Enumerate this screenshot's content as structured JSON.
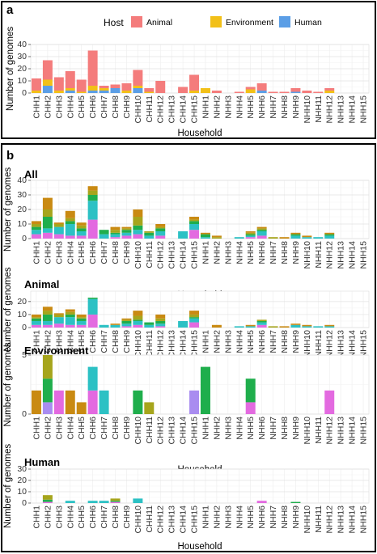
{
  "panel_a": {
    "letter": "a"
  },
  "panel_b": {
    "letter": "b"
  },
  "legend": {
    "title": "Host",
    "items": [
      {
        "label": "Animal",
        "color": "#f47c7c"
      },
      {
        "label": "Environment",
        "color": "#f2c018"
      },
      {
        "label": "Human",
        "color": "#5b9ee6"
      }
    ]
  },
  "chart_data": [
    {
      "id": "a",
      "type": "bar",
      "stacked": true,
      "title": "",
      "xlabel": "Household",
      "ylabel": "Number of genomes",
      "ylim": [
        0,
        40
      ],
      "yticks": [
        0,
        10,
        20,
        30,
        40
      ],
      "grid": true,
      "categories": [
        "CHH1",
        "CHH2",
        "CHH3",
        "CHH4",
        "CHH5",
        "CHH6",
        "CHH7",
        "CHH8",
        "CHH9",
        "CHH10",
        "CHH11",
        "CHH12",
        "CHH13",
        "CHH14",
        "CHH15",
        "NHH1",
        "NHH2",
        "NHH3",
        "NHH4",
        "NHH5",
        "NHH6",
        "NHH7",
        "NHH8",
        "NHH9",
        "NHH10",
        "NHH11",
        "NHH12",
        "NHH13",
        "NHH14",
        "NHH15"
      ],
      "series": [
        {
          "name": "Human",
          "color": "#5b9ee6",
          "values": [
            0,
            6,
            0,
            2,
            0,
            2,
            2,
            4,
            0,
            4,
            0,
            0,
            0,
            0,
            0,
            0,
            0,
            0,
            0,
            0,
            2,
            0,
            0,
            1,
            0,
            0,
            0,
            0,
            0,
            0
          ]
        },
        {
          "name": "Environment",
          "color": "#f2c018",
          "values": [
            2,
            5,
            2,
            2,
            1,
            4,
            2,
            0,
            2,
            2,
            1,
            0,
            0,
            0,
            2,
            4,
            0,
            0,
            0,
            3,
            0,
            0,
            0,
            0,
            0,
            0,
            2,
            0,
            0,
            0
          ]
        },
        {
          "name": "Animal",
          "color": "#f47c7c",
          "values": [
            10,
            16,
            11,
            14,
            10,
            29,
            2,
            3,
            6,
            13,
            3,
            10,
            0,
            5,
            13,
            0,
            2,
            0,
            1,
            2,
            6,
            1,
            1,
            3,
            2,
            1,
            2,
            0,
            0,
            0
          ]
        }
      ]
    },
    {
      "id": "b-all",
      "type": "bar",
      "stacked": true,
      "title": "All",
      "xlabel": "Household",
      "ylabel": "Number of genomes",
      "ylim": [
        0,
        40
      ],
      "yticks": [
        0,
        10,
        20,
        30,
        40
      ],
      "grid": true,
      "categories": [
        "CHH1",
        "CHH2",
        "CHH3",
        "CHH4",
        "CHH5",
        "CHH6",
        "CHH7",
        "CHH8",
        "CHH9",
        "CHH10",
        "CHH11",
        "CHH12",
        "CHH13",
        "CHH14",
        "CHH15",
        "NHH1",
        "NHH2",
        "NHH3",
        "NHH4",
        "NHH5",
        "NHH6",
        "NHH7",
        "NHH8",
        "NHH9",
        "NHH10",
        "NHH11",
        "NHH12",
        "NHH13",
        "NHH14",
        "NHH15"
      ],
      "series": [
        {
          "color": "#e36ae0",
          "values": [
            3,
            4,
            3,
            2,
            2,
            13,
            0,
            1,
            2,
            3,
            0,
            2,
            0,
            0,
            6,
            0,
            0,
            0,
            0,
            1,
            2,
            0,
            0,
            0,
            0,
            0,
            0,
            0,
            0,
            0
          ]
        },
        {
          "color": "#2cc1c4",
          "values": [
            3,
            3,
            5,
            8,
            3,
            13,
            3,
            2,
            2,
            3,
            2,
            3,
            0,
            5,
            4,
            1,
            0,
            0,
            1,
            1,
            3,
            0,
            0,
            2,
            1,
            1,
            2,
            0,
            0,
            0
          ]
        },
        {
          "color": "#1fae4c",
          "values": [
            2,
            8,
            0,
            2,
            2,
            4,
            3,
            1,
            2,
            3,
            2,
            2,
            0,
            0,
            2,
            2,
            0,
            0,
            0,
            1,
            1,
            0,
            0,
            1,
            0,
            0,
            1,
            0,
            0,
            0
          ]
        },
        {
          "color": "#a6a51c",
          "values": [
            2,
            5,
            2,
            2,
            2,
            3,
            0,
            2,
            1,
            6,
            1,
            1,
            0,
            0,
            1,
            0,
            1,
            0,
            0,
            1,
            1,
            1,
            0,
            0,
            0,
            0,
            0,
            0,
            0,
            0
          ]
        },
        {
          "color": "#c98a12",
          "values": [
            2,
            8,
            1,
            5,
            2,
            3,
            0,
            2,
            1,
            5,
            0,
            2,
            0,
            0,
            2,
            1,
            1,
            0,
            0,
            1,
            1,
            0,
            1,
            1,
            1,
            0,
            1,
            0,
            0,
            0
          ]
        },
        {
          "color": "#f47c7c",
          "values": [
            0,
            0,
            0,
            0,
            0,
            0,
            0,
            0,
            0,
            0,
            0,
            0,
            0,
            0,
            0,
            0,
            0,
            0,
            0,
            0,
            0,
            0,
            0,
            0,
            0,
            0,
            0,
            0,
            0,
            0
          ]
        }
      ]
    },
    {
      "id": "b-animal",
      "type": "bar",
      "stacked": true,
      "title": "Animal",
      "xlabel": "Household",
      "ylabel": "Number of genomes",
      "ylim": [
        0,
        28
      ],
      "yticks": [
        0,
        10,
        20
      ],
      "grid": true,
      "categories": [
        "CHH1",
        "CHH2",
        "CHH3",
        "CHH4",
        "CHH5",
        "CHH6",
        "CHH7",
        "CHH8",
        "CHH9",
        "CHH10",
        "CHH11",
        "CHH12",
        "CHH13",
        "CHH14",
        "CHH15",
        "NHH1",
        "NHH2",
        "NHH3",
        "NHH4",
        "NHH5",
        "NHH6",
        "NHH7",
        "NHH8",
        "NHH9",
        "NHH10",
        "NHH11",
        "NHH12",
        "NHH13",
        "NHH14",
        "NHH15"
      ],
      "series": [
        {
          "color": "#e36ae0",
          "values": [
            2,
            2,
            3,
            2,
            2,
            10,
            0,
            0,
            1,
            2,
            0,
            1,
            0,
            0,
            4,
            0,
            0,
            0,
            0,
            0,
            2,
            0,
            0,
            0,
            0,
            0,
            0,
            0,
            0,
            0
          ]
        },
        {
          "color": "#2cc1c4",
          "values": [
            3,
            3,
            5,
            6,
            3,
            12,
            2,
            2,
            2,
            3,
            2,
            2,
            0,
            5,
            3,
            0,
            0,
            0,
            1,
            1,
            2,
            0,
            0,
            2,
            1,
            1,
            1,
            0,
            0,
            0
          ]
        },
        {
          "color": "#1fae4c",
          "values": [
            2,
            5,
            0,
            2,
            2,
            1,
            0,
            0,
            2,
            1,
            2,
            2,
            0,
            0,
            1,
            0,
            0,
            0,
            0,
            0,
            1,
            0,
            0,
            0,
            0,
            0,
            0,
            0,
            0,
            0
          ]
        },
        {
          "color": "#a6a51c",
          "values": [
            1,
            3,
            2,
            2,
            1,
            0,
            0,
            0,
            1,
            3,
            0,
            2,
            0,
            0,
            2,
            0,
            0,
            0,
            0,
            0,
            1,
            1,
            0,
            0,
            0,
            0,
            0,
            0,
            0,
            0
          ]
        },
        {
          "color": "#c98a12",
          "values": [
            2,
            3,
            1,
            2,
            2,
            0,
            0,
            1,
            1,
            4,
            0,
            3,
            0,
            0,
            3,
            0,
            2,
            0,
            0,
            1,
            0,
            0,
            1,
            1,
            1,
            0,
            1,
            0,
            0,
            0
          ]
        }
      ]
    },
    {
      "id": "b-environment",
      "type": "bar",
      "stacked": true,
      "title": "Environment",
      "xlabel": "Household",
      "ylabel": "Number of genomes",
      "ylim": [
        0,
        5
      ],
      "yticks": [
        0,
        5
      ],
      "grid": true,
      "categories": [
        "CHH1",
        "CHH2",
        "CHH3",
        "CHH4",
        "CHH5",
        "CHH6",
        "CHH7",
        "CHH8",
        "CHH9",
        "CHH10",
        "CHH11",
        "CHH12",
        "CHH13",
        "CHH14",
        "CHH15",
        "NHH1",
        "NHH2",
        "NHH3",
        "NHH4",
        "NHH5",
        "NHH6",
        "NHH7",
        "NHH8",
        "NHH9",
        "NHH10",
        "NHH11",
        "NHH12",
        "NHH13",
        "NHH14",
        "NHH15"
      ],
      "series": [
        {
          "color": "#e36ae0",
          "values": [
            0,
            0,
            2,
            0,
            0,
            2,
            0,
            0,
            0,
            0,
            0,
            0,
            0,
            0,
            0,
            0,
            0,
            0,
            0,
            1,
            0,
            0,
            0,
            0,
            0,
            0,
            2,
            0,
            0,
            0
          ]
        },
        {
          "color": "#a98cf0",
          "values": [
            0,
            1,
            0,
            0,
            0,
            0,
            0,
            0,
            0,
            0,
            0,
            0,
            0,
            0,
            2,
            0,
            0,
            0,
            0,
            0,
            0,
            0,
            0,
            0,
            0,
            0,
            0,
            0,
            0,
            0
          ]
        },
        {
          "color": "#2cc1c4",
          "values": [
            0,
            0,
            0,
            0,
            0,
            2,
            2,
            0,
            0,
            0,
            0,
            0,
            0,
            0,
            0,
            0,
            0,
            0,
            0,
            0,
            0,
            0,
            0,
            0,
            0,
            0,
            0,
            0,
            0,
            0
          ]
        },
        {
          "color": "#1fae4c",
          "values": [
            0,
            2,
            0,
            0,
            0,
            0,
            0,
            0,
            0,
            2,
            0,
            0,
            0,
            0,
            0,
            4,
            0,
            0,
            0,
            2,
            0,
            0,
            0,
            0,
            0,
            0,
            0,
            0,
            0,
            0
          ]
        },
        {
          "color": "#a6a51c",
          "values": [
            0,
            2,
            0,
            0,
            0,
            0,
            0,
            0,
            0,
            0,
            1,
            0,
            0,
            0,
            0,
            0,
            0,
            0,
            0,
            0,
            0,
            0,
            0,
            0,
            0,
            0,
            0,
            0,
            0,
            0
          ]
        },
        {
          "color": "#c98a12",
          "values": [
            2,
            0,
            0,
            2,
            1,
            0,
            0,
            0,
            0,
            0,
            0,
            0,
            0,
            0,
            0,
            0,
            0,
            0,
            0,
            0,
            0,
            0,
            0,
            0,
            0,
            0,
            0,
            0,
            0,
            0
          ]
        }
      ]
    },
    {
      "id": "b-human",
      "type": "bar",
      "stacked": true,
      "title": "Human",
      "xlabel": "Household",
      "ylabel": "Number of genomes",
      "ylim": [
        0,
        30
      ],
      "yticks": [
        0,
        10,
        20,
        30
      ],
      "grid": true,
      "categories": [
        "CHH1",
        "CHH2",
        "CHH3",
        "CHH4",
        "CHH5",
        "CHH6",
        "CHH7",
        "CHH8",
        "CHH9",
        "CHH10",
        "CHH11",
        "CHH12",
        "CHH13",
        "CHH14",
        "CHH15",
        "NHH1",
        "NHH2",
        "NHH3",
        "NHH4",
        "NHH5",
        "NHH6",
        "NHH7",
        "NHH8",
        "NHH9",
        "NHH10",
        "NHH11",
        "NHH12",
        "NHH13",
        "NHH14",
        "NHH15"
      ],
      "series": [
        {
          "color": "#e36ae0",
          "values": [
            0,
            1,
            0,
            0,
            0,
            0,
            0,
            1,
            0,
            0,
            0,
            0,
            0,
            0,
            0,
            0,
            0,
            0,
            0,
            0,
            2,
            0,
            0,
            0,
            0,
            0,
            0,
            0,
            0,
            0
          ]
        },
        {
          "color": "#2cc1c4",
          "values": [
            0,
            0,
            0,
            2,
            0,
            2,
            2,
            0,
            0,
            4,
            0,
            0,
            0,
            0,
            0,
            0,
            0,
            0,
            0,
            0,
            0,
            0,
            0,
            0,
            0,
            0,
            0,
            0,
            0,
            0
          ]
        },
        {
          "color": "#1fae4c",
          "values": [
            0,
            2,
            0,
            0,
            0,
            0,
            0,
            1,
            0,
            0,
            0,
            0,
            0,
            0,
            0,
            0,
            0,
            0,
            0,
            0,
            0,
            0,
            0,
            1,
            0,
            0,
            0,
            0,
            0,
            0
          ]
        },
        {
          "color": "#a6a51c",
          "values": [
            0,
            4,
            0,
            0,
            0,
            0,
            0,
            2,
            0,
            0,
            0,
            0,
            0,
            0,
            0,
            0,
            0,
            0,
            0,
            0,
            0,
            0,
            0,
            0,
            0,
            0,
            0,
            0,
            0,
            0
          ]
        }
      ]
    }
  ]
}
